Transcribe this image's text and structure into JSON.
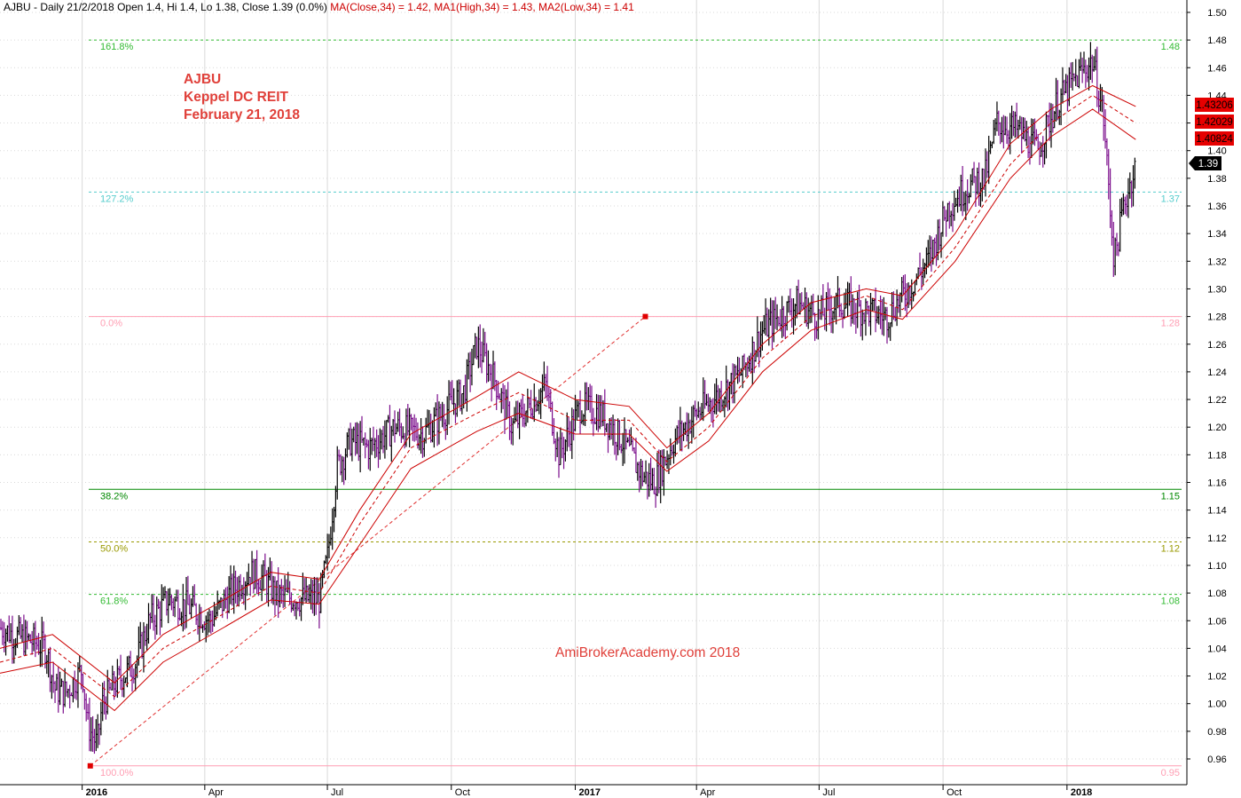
{
  "header": {
    "symbol": "AJBU",
    "text": "AJBU - Daily 21/2/2018 Open 1.4, Hi 1.4, Lo 1.38, Close 1.39 (0.0%)",
    "ma_close": "MA(Close,34) = 1.42,",
    "ma_high": "MA1(High,34) = 1.43,",
    "ma_low": "MA2(Low,34) = 1.41"
  },
  "annotation": {
    "line1": "AJBU",
    "line2": "Keppel DC REIT",
    "line3": "February 21, 2018"
  },
  "watermark": "AmiBrokerAcademy.com  2018",
  "chart_data": {
    "type": "line",
    "title": "AJBU - Daily 21/2/2018",
    "price_scale": {
      "min": 0.95,
      "max": 1.5,
      "step": 0.02,
      "tick_labels": [
        "0.96",
        "0.98",
        "1.00",
        "1.02",
        "1.04",
        "1.06",
        "1.08",
        "1.10",
        "1.12",
        "1.14",
        "1.16",
        "1.18",
        "1.20",
        "1.22",
        "1.24",
        "1.26",
        "1.28",
        "1.30",
        "1.32",
        "1.34",
        "1.36",
        "1.38",
        "1.40",
        "1.42",
        "1.44",
        "1.46",
        "1.48",
        "1.50"
      ]
    },
    "x_range": [
      "2015-11-01",
      "2018-03-31"
    ],
    "x_ticks": [
      {
        "label": "2016",
        "date": "2016-01-01",
        "bold": true
      },
      {
        "label": "Apr",
        "date": "2016-04-01"
      },
      {
        "label": "Jul",
        "date": "2016-07-01"
      },
      {
        "label": "Oct",
        "date": "2016-10-01"
      },
      {
        "label": "2017",
        "date": "2017-01-01",
        "bold": true
      },
      {
        "label": "Apr",
        "date": "2017-04-01"
      },
      {
        "label": "Jul",
        "date": "2017-07-01"
      },
      {
        "label": "Oct",
        "date": "2017-10-01"
      },
      {
        "label": "2018",
        "date": "2018-01-01",
        "bold": true
      }
    ],
    "grid": true,
    "fibonacci_levels": [
      {
        "label": "161.8%",
        "price": 1.48,
        "price_label": "1.48",
        "color": "#33bb33",
        "style": "dotted"
      },
      {
        "label": "127.2%",
        "price": 1.37,
        "price_label": "1.37",
        "color": "#55cccc",
        "style": "dotted"
      },
      {
        "label": "0.0%",
        "price": 1.28,
        "price_label": "1.28",
        "color": "#ff9eb3",
        "style": "solid"
      },
      {
        "label": "38.2%",
        "price": 1.155,
        "price_label": "1.15",
        "color": "#008800",
        "style": "solid"
      },
      {
        "label": "50.0%",
        "price": 1.117,
        "price_label": "1.12",
        "color": "#999900",
        "style": "dotted"
      },
      {
        "label": "61.8%",
        "price": 1.079,
        "price_label": "1.08",
        "color": "#33bb33",
        "style": "dotted"
      },
      {
        "label": "100.0%",
        "price": 0.955,
        "price_label": "0.95",
        "color": "#ff9eb3",
        "style": "solid"
      }
    ],
    "fib_anchor": {
      "start": {
        "date": "2016-01-07",
        "price": 0.955
      },
      "end": {
        "date": "2017-02-22",
        "price": 1.28
      }
    },
    "price_path": [
      [
        "2015-11-01",
        1.055
      ],
      [
        "2015-11-15",
        1.048
      ],
      [
        "2015-11-25",
        1.045
      ],
      [
        "2015-12-05",
        1.04
      ],
      [
        "2015-12-12",
        1.01
      ],
      [
        "2015-12-20",
        1.008
      ],
      [
        "2016-01-01",
        1.025
      ],
      [
        "2016-01-05",
        0.985
      ],
      [
        "2016-01-12",
        0.97
      ],
      [
        "2016-01-16",
        1.0
      ],
      [
        "2016-01-26",
        1.015
      ],
      [
        "2016-02-10",
        1.03
      ],
      [
        "2016-02-20",
        1.06
      ],
      [
        "2016-03-05",
        1.075
      ],
      [
        "2016-03-20",
        1.07
      ],
      [
        "2016-04-05",
        1.06
      ],
      [
        "2016-04-20",
        1.08
      ],
      [
        "2016-05-05",
        1.095
      ],
      [
        "2016-05-15",
        1.09
      ],
      [
        "2016-05-25",
        1.078
      ],
      [
        "2016-06-10",
        1.076
      ],
      [
        "2016-06-25",
        1.075
      ],
      [
        "2016-07-01",
        1.105
      ],
      [
        "2016-07-08",
        1.17
      ],
      [
        "2016-07-18",
        1.19
      ],
      [
        "2016-08-01",
        1.185
      ],
      [
        "2016-08-20",
        1.2
      ],
      [
        "2016-09-10",
        1.195
      ],
      [
        "2016-09-25",
        1.21
      ],
      [
        "2016-10-10",
        1.225
      ],
      [
        "2016-10-20",
        1.26
      ],
      [
        "2016-11-02",
        1.235
      ],
      [
        "2016-11-15",
        1.2
      ],
      [
        "2016-11-28",
        1.215
      ],
      [
        "2016-12-10",
        1.23
      ],
      [
        "2016-12-20",
        1.18
      ],
      [
        "2017-01-05",
        1.215
      ],
      [
        "2017-01-20",
        1.21
      ],
      [
        "2017-02-05",
        1.19
      ],
      [
        "2017-02-20",
        1.165
      ],
      [
        "2017-03-01",
        1.16
      ],
      [
        "2017-03-15",
        1.19
      ],
      [
        "2017-04-01",
        1.21
      ],
      [
        "2017-04-20",
        1.225
      ],
      [
        "2017-05-05",
        1.24
      ],
      [
        "2017-05-20",
        1.27
      ],
      [
        "2017-06-01",
        1.28
      ],
      [
        "2017-06-15",
        1.29
      ],
      [
        "2017-06-30",
        1.28
      ],
      [
        "2017-07-15",
        1.29
      ],
      [
        "2017-08-01",
        1.285
      ],
      [
        "2017-08-20",
        1.28
      ],
      [
        "2017-09-05",
        1.3
      ],
      [
        "2017-09-20",
        1.32
      ],
      [
        "2017-10-05",
        1.36
      ],
      [
        "2017-10-20",
        1.375
      ],
      [
        "2017-11-01",
        1.38
      ],
      [
        "2017-11-10",
        1.42
      ],
      [
        "2017-11-25",
        1.415
      ],
      [
        "2017-12-10",
        1.4
      ],
      [
        "2017-12-25",
        1.435
      ],
      [
        "2018-01-10",
        1.455
      ],
      [
        "2018-01-20",
        1.465
      ],
      [
        "2018-01-28",
        1.425
      ],
      [
        "2018-02-05",
        1.32
      ],
      [
        "2018-02-12",
        1.36
      ],
      [
        "2018-02-21",
        1.39
      ]
    ],
    "series": [
      {
        "name": "MA(Close,34)",
        "value": 1.42,
        "label": "1.42029",
        "color": "#cc0000",
        "style": "dashed",
        "path": [
          [
            "2015-11-01",
            1.03
          ],
          [
            "2015-12-10",
            1.04
          ],
          [
            "2016-01-25",
            1.005
          ],
          [
            "2016-03-01",
            1.04
          ],
          [
            "2016-04-15",
            1.065
          ],
          [
            "2016-05-20",
            1.085
          ],
          [
            "2016-06-25",
            1.08
          ],
          [
            "2016-07-25",
            1.13
          ],
          [
            "2016-09-01",
            1.185
          ],
          [
            "2016-10-20",
            1.21
          ],
          [
            "2016-11-20",
            1.225
          ],
          [
            "2017-01-01",
            1.205
          ],
          [
            "2017-02-10",
            1.205
          ],
          [
            "2017-03-10",
            1.175
          ],
          [
            "2017-04-10",
            1.2
          ],
          [
            "2017-05-20",
            1.25
          ],
          [
            "2017-06-25",
            1.28
          ],
          [
            "2017-08-05",
            1.295
          ],
          [
            "2017-09-01",
            1.285
          ],
          [
            "2017-10-10",
            1.33
          ],
          [
            "2017-11-20",
            1.39
          ],
          [
            "2017-12-20",
            1.42
          ],
          [
            "2018-01-20",
            1.44
          ],
          [
            "2018-02-21",
            1.42
          ]
        ]
      },
      {
        "name": "MA1(High,34)",
        "value": 1.43,
        "label": "1.43206",
        "color": "#cc0000",
        "style": "solid",
        "path": [
          [
            "2015-11-01",
            1.04
          ],
          [
            "2015-12-10",
            1.05
          ],
          [
            "2016-01-25",
            1.015
          ],
          [
            "2016-03-01",
            1.05
          ],
          [
            "2016-04-15",
            1.075
          ],
          [
            "2016-05-20",
            1.095
          ],
          [
            "2016-06-25",
            1.09
          ],
          [
            "2016-07-25",
            1.14
          ],
          [
            "2016-09-01",
            1.195
          ],
          [
            "2016-10-20",
            1.222
          ],
          [
            "2016-11-20",
            1.24
          ],
          [
            "2017-01-01",
            1.22
          ],
          [
            "2017-02-10",
            1.215
          ],
          [
            "2017-03-10",
            1.185
          ],
          [
            "2017-04-10",
            1.21
          ],
          [
            "2017-05-20",
            1.26
          ],
          [
            "2017-06-25",
            1.29
          ],
          [
            "2017-08-05",
            1.3
          ],
          [
            "2017-09-01",
            1.295
          ],
          [
            "2017-10-10",
            1.34
          ],
          [
            "2017-11-20",
            1.405
          ],
          [
            "2017-12-20",
            1.43
          ],
          [
            "2018-01-20",
            1.447
          ],
          [
            "2018-02-21",
            1.432
          ]
        ]
      },
      {
        "name": "MA2(Low,34)",
        "value": 1.41,
        "label": "1.40824",
        "color": "#cc0000",
        "style": "solid",
        "path": [
          [
            "2015-11-01",
            1.022
          ],
          [
            "2015-12-10",
            1.03
          ],
          [
            "2016-01-25",
            0.995
          ],
          [
            "2016-03-01",
            1.03
          ],
          [
            "2016-04-15",
            1.055
          ],
          [
            "2016-05-20",
            1.075
          ],
          [
            "2016-06-25",
            1.072
          ],
          [
            "2016-07-25",
            1.115
          ],
          [
            "2016-09-01",
            1.17
          ],
          [
            "2016-10-20",
            1.197
          ],
          [
            "2016-11-20",
            1.21
          ],
          [
            "2017-01-01",
            1.195
          ],
          [
            "2017-02-10",
            1.195
          ],
          [
            "2017-03-10",
            1.168
          ],
          [
            "2017-04-10",
            1.19
          ],
          [
            "2017-05-20",
            1.24
          ],
          [
            "2017-06-25",
            1.27
          ],
          [
            "2017-08-05",
            1.285
          ],
          [
            "2017-09-01",
            1.278
          ],
          [
            "2017-10-10",
            1.32
          ],
          [
            "2017-11-20",
            1.38
          ],
          [
            "2017-12-20",
            1.41
          ],
          [
            "2018-01-20",
            1.43
          ],
          [
            "2018-02-21",
            1.408
          ]
        ]
      }
    ],
    "last_close": {
      "value": 1.39,
      "label": "1.39"
    },
    "bar_colors": {
      "up": "#000000",
      "down": "#7b0d8c"
    },
    "colors": {
      "grid": "#d9d9d9",
      "ma": "#cc0000",
      "label_bg_ma": "#e60000",
      "label_bg_close": "#000000"
    }
  }
}
